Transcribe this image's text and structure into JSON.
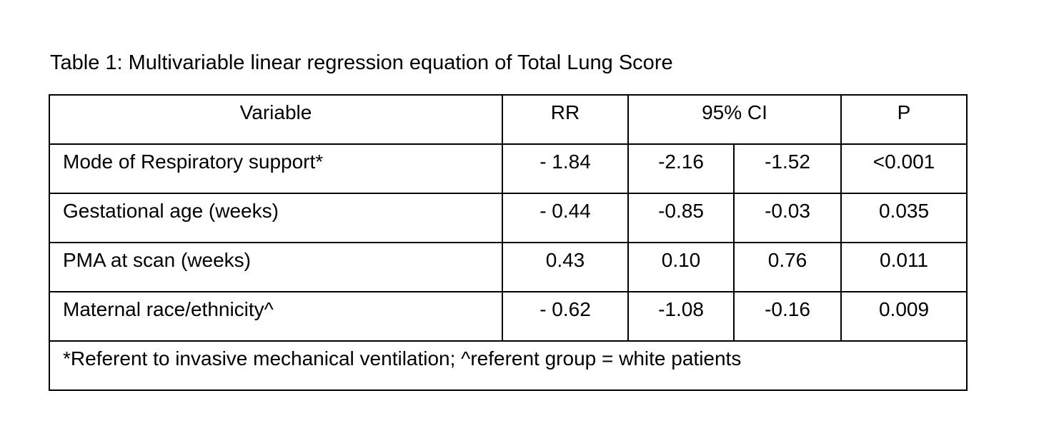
{
  "caption": "Table 1:  Multivariable linear regression equation of Total Lung Score",
  "table": {
    "headers": {
      "variable": "Variable",
      "rr": "RR",
      "ci": "95% CI",
      "p": "P"
    },
    "rows": [
      {
        "variable": "Mode of Respiratory support*",
        "rr": "- 1.84",
        "ci_low": "-2.16",
        "ci_high": "-1.52",
        "p": "<0.001"
      },
      {
        "variable": "Gestational age (weeks)",
        "rr": "- 0.44",
        "ci_low": "-0.85",
        "ci_high": "-0.03",
        "p": "0.035"
      },
      {
        "variable": "PMA at scan (weeks)",
        "rr": "0.43",
        "ci_low": "0.10",
        "ci_high": "0.76",
        "p": "0.011"
      },
      {
        "variable": "Maternal race/ethnicity^",
        "rr": "- 0.62",
        "ci_low": "-1.08",
        "ci_high": "-0.16",
        "p": "0.009"
      }
    ],
    "footnote": "*Referent to invasive mechanical ventilation; ^referent group = white patients"
  }
}
